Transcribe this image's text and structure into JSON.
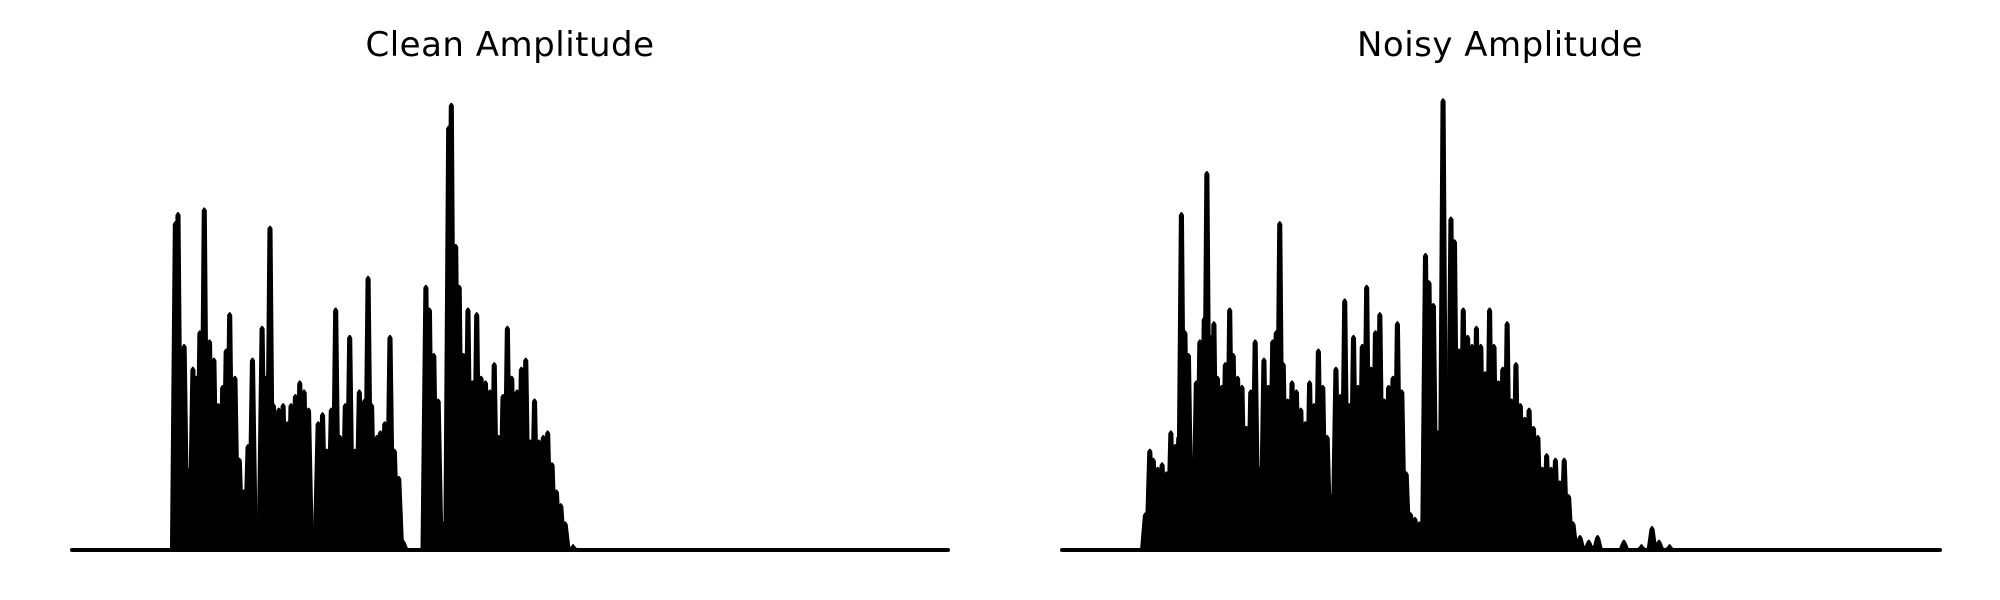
{
  "chart_data": [
    {
      "type": "area",
      "title": "Clean Amplitude",
      "xlabel": "",
      "ylabel": "",
      "grid": false,
      "axes_visible": false,
      "color": "#000000",
      "ylim": [
        0,
        1.0
      ],
      "xlim": [
        0,
        1000
      ],
      "peaks": [
        {
          "x": 118,
          "y": 0.72
        },
        {
          "x": 121,
          "y": 0.74
        },
        {
          "x": 128,
          "y": 0.45
        },
        {
          "x": 138,
          "y": 0.4
        },
        {
          "x": 142,
          "y": 0.38
        },
        {
          "x": 146,
          "y": 0.48
        },
        {
          "x": 151,
          "y": 0.75
        },
        {
          "x": 157,
          "y": 0.46
        },
        {
          "x": 162,
          "y": 0.42
        },
        {
          "x": 167,
          "y": 0.32
        },
        {
          "x": 172,
          "y": 0.36
        },
        {
          "x": 176,
          "y": 0.44
        },
        {
          "x": 180,
          "y": 0.52
        },
        {
          "x": 186,
          "y": 0.38
        },
        {
          "x": 191,
          "y": 0.2
        },
        {
          "x": 196,
          "y": 0.13
        },
        {
          "x": 201,
          "y": 0.23
        },
        {
          "x": 206,
          "y": 0.42
        },
        {
          "x": 212,
          "y": 0.05
        },
        {
          "x": 217,
          "y": 0.49
        },
        {
          "x": 221,
          "y": 0.38
        },
        {
          "x": 226,
          "y": 0.71
        },
        {
          "x": 230,
          "y": 0.32
        },
        {
          "x": 236,
          "y": 0.31
        },
        {
          "x": 241,
          "y": 0.32
        },
        {
          "x": 246,
          "y": 0.28
        },
        {
          "x": 250,
          "y": 0.32
        },
        {
          "x": 255,
          "y": 0.34
        },
        {
          "x": 260,
          "y": 0.37
        },
        {
          "x": 265,
          "y": 0.35
        },
        {
          "x": 270,
          "y": 0.31
        },
        {
          "x": 275,
          "y": 0.05
        },
        {
          "x": 281,
          "y": 0.28
        },
        {
          "x": 286,
          "y": 0.3
        },
        {
          "x": 291,
          "y": 0.22
        },
        {
          "x": 296,
          "y": 0.31
        },
        {
          "x": 301,
          "y": 0.53
        },
        {
          "x": 306,
          "y": 0.25
        },
        {
          "x": 312,
          "y": 0.32
        },
        {
          "x": 317,
          "y": 0.47
        },
        {
          "x": 323,
          "y": 0.22
        },
        {
          "x": 328,
          "y": 0.35
        },
        {
          "x": 334,
          "y": 0.33
        },
        {
          "x": 338,
          "y": 0.6
        },
        {
          "x": 342,
          "y": 0.32
        },
        {
          "x": 348,
          "y": 0.25
        },
        {
          "x": 352,
          "y": 0.26
        },
        {
          "x": 357,
          "y": 0.28
        },
        {
          "x": 363,
          "y": 0.47
        },
        {
          "x": 368,
          "y": 0.22
        },
        {
          "x": 373,
          "y": 0.16
        },
        {
          "x": 378,
          "y": 0.02
        },
        {
          "x": 404,
          "y": 0.58
        },
        {
          "x": 408,
          "y": 0.53
        },
        {
          "x": 413,
          "y": 0.43
        },
        {
          "x": 418,
          "y": 0.33
        },
        {
          "x": 423,
          "y": 0.06
        },
        {
          "x": 430,
          "y": 0.93
        },
        {
          "x": 433,
          "y": 0.98
        },
        {
          "x": 438,
          "y": 0.67
        },
        {
          "x": 442,
          "y": 0.58
        },
        {
          "x": 447,
          "y": 0.43
        },
        {
          "x": 452,
          "y": 0.53
        },
        {
          "x": 457,
          "y": 0.37
        },
        {
          "x": 462,
          "y": 0.52
        },
        {
          "x": 467,
          "y": 0.38
        },
        {
          "x": 472,
          "y": 0.37
        },
        {
          "x": 477,
          "y": 0.35
        },
        {
          "x": 482,
          "y": 0.41
        },
        {
          "x": 487,
          "y": 0.25
        },
        {
          "x": 492,
          "y": 0.34
        },
        {
          "x": 497,
          "y": 0.49
        },
        {
          "x": 502,
          "y": 0.38
        },
        {
          "x": 508,
          "y": 0.35
        },
        {
          "x": 513,
          "y": 0.4
        },
        {
          "x": 518,
          "y": 0.42
        },
        {
          "x": 523,
          "y": 0.24
        },
        {
          "x": 528,
          "y": 0.33
        },
        {
          "x": 533,
          "y": 0.24
        },
        {
          "x": 538,
          "y": 0.25
        },
        {
          "x": 543,
          "y": 0.26
        },
        {
          "x": 548,
          "y": 0.19
        },
        {
          "x": 553,
          "y": 0.13
        },
        {
          "x": 558,
          "y": 0.1
        },
        {
          "x": 563,
          "y": 0.06
        },
        {
          "x": 572,
          "y": 0.01
        }
      ]
    },
    {
      "type": "area",
      "title": "Noisy Amplitude",
      "xlabel": "",
      "ylabel": "",
      "grid": false,
      "axes_visible": false,
      "color": "#000000",
      "ylim": [
        0,
        1.0
      ],
      "xlim": [
        0,
        1000
      ],
      "peaks": [
        {
          "x": 95,
          "y": 0.08
        },
        {
          "x": 100,
          "y": 0.22
        },
        {
          "x": 104,
          "y": 0.2
        },
        {
          "x": 109,
          "y": 0.18
        },
        {
          "x": 114,
          "y": 0.19
        },
        {
          "x": 119,
          "y": 0.17
        },
        {
          "x": 124,
          "y": 0.26
        },
        {
          "x": 129,
          "y": 0.23
        },
        {
          "x": 133,
          "y": 0.25
        },
        {
          "x": 136,
          "y": 0.74
        },
        {
          "x": 140,
          "y": 0.48
        },
        {
          "x": 144,
          "y": 0.43
        },
        {
          "x": 148,
          "y": 0.19
        },
        {
          "x": 153,
          "y": 0.37
        },
        {
          "x": 157,
          "y": 0.46
        },
        {
          "x": 162,
          "y": 0.51
        },
        {
          "x": 165,
          "y": 0.83
        },
        {
          "x": 169,
          "y": 0.47
        },
        {
          "x": 173,
          "y": 0.5
        },
        {
          "x": 177,
          "y": 0.38
        },
        {
          "x": 182,
          "y": 0.36
        },
        {
          "x": 186,
          "y": 0.41
        },
        {
          "x": 191,
          "y": 0.53
        },
        {
          "x": 195,
          "y": 0.43
        },
        {
          "x": 200,
          "y": 0.38
        },
        {
          "x": 205,
          "y": 0.36
        },
        {
          "x": 210,
          "y": 0.27
        },
        {
          "x": 215,
          "y": 0.35
        },
        {
          "x": 220,
          "y": 0.46
        },
        {
          "x": 225,
          "y": 0.18
        },
        {
          "x": 230,
          "y": 0.42
        },
        {
          "x": 235,
          "y": 0.36
        },
        {
          "x": 240,
          "y": 0.46
        },
        {
          "x": 244,
          "y": 0.48
        },
        {
          "x": 248,
          "y": 0.72
        },
        {
          "x": 252,
          "y": 0.41
        },
        {
          "x": 257,
          "y": 0.33
        },
        {
          "x": 262,
          "y": 0.37
        },
        {
          "x": 267,
          "y": 0.35
        },
        {
          "x": 272,
          "y": 0.31
        },
        {
          "x": 277,
          "y": 0.28
        },
        {
          "x": 282,
          "y": 0.37
        },
        {
          "x": 287,
          "y": 0.32
        },
        {
          "x": 292,
          "y": 0.44
        },
        {
          "x": 297,
          "y": 0.36
        },
        {
          "x": 302,
          "y": 0.25
        },
        {
          "x": 307,
          "y": 0.12
        },
        {
          "x": 312,
          "y": 0.4
        },
        {
          "x": 317,
          "y": 0.34
        },
        {
          "x": 322,
          "y": 0.55
        },
        {
          "x": 327,
          "y": 0.32
        },
        {
          "x": 332,
          "y": 0.47
        },
        {
          "x": 337,
          "y": 0.36
        },
        {
          "x": 342,
          "y": 0.45
        },
        {
          "x": 347,
          "y": 0.58
        },
        {
          "x": 352,
          "y": 0.4
        },
        {
          "x": 357,
          "y": 0.48
        },
        {
          "x": 362,
          "y": 0.52
        },
        {
          "x": 367,
          "y": 0.33
        },
        {
          "x": 372,
          "y": 0.36
        },
        {
          "x": 377,
          "y": 0.38
        },
        {
          "x": 382,
          "y": 0.5
        },
        {
          "x": 387,
          "y": 0.35
        },
        {
          "x": 392,
          "y": 0.17
        },
        {
          "x": 397,
          "y": 0.08
        },
        {
          "x": 402,
          "y": 0.07
        },
        {
          "x": 407,
          "y": 0.06
        },
        {
          "x": 414,
          "y": 0.65
        },
        {
          "x": 418,
          "y": 0.59
        },
        {
          "x": 423,
          "y": 0.54
        },
        {
          "x": 428,
          "y": 0.26
        },
        {
          "x": 434,
          "y": 0.99
        },
        {
          "x": 439,
          "y": 0.31
        },
        {
          "x": 443,
          "y": 0.73
        },
        {
          "x": 447,
          "y": 0.68
        },
        {
          "x": 452,
          "y": 0.44
        },
        {
          "x": 457,
          "y": 0.53
        },
        {
          "x": 462,
          "y": 0.47
        },
        {
          "x": 467,
          "y": 0.45
        },
        {
          "x": 472,
          "y": 0.49
        },
        {
          "x": 477,
          "y": 0.45
        },
        {
          "x": 482,
          "y": 0.39
        },
        {
          "x": 487,
          "y": 0.53
        },
        {
          "x": 492,
          "y": 0.45
        },
        {
          "x": 497,
          "y": 0.37
        },
        {
          "x": 502,
          "y": 0.4
        },
        {
          "x": 507,
          "y": 0.5
        },
        {
          "x": 512,
          "y": 0.33
        },
        {
          "x": 517,
          "y": 0.41
        },
        {
          "x": 522,
          "y": 0.32
        },
        {
          "x": 527,
          "y": 0.29
        },
        {
          "x": 532,
          "y": 0.31
        },
        {
          "x": 537,
          "y": 0.27
        },
        {
          "x": 542,
          "y": 0.25
        },
        {
          "x": 547,
          "y": 0.18
        },
        {
          "x": 552,
          "y": 0.21
        },
        {
          "x": 557,
          "y": 0.18
        },
        {
          "x": 562,
          "y": 0.2
        },
        {
          "x": 567,
          "y": 0.15
        },
        {
          "x": 572,
          "y": 0.2
        },
        {
          "x": 577,
          "y": 0.12
        },
        {
          "x": 582,
          "y": 0.06
        },
        {
          "x": 590,
          "y": 0.03
        },
        {
          "x": 600,
          "y": 0.02
        },
        {
          "x": 610,
          "y": 0.03
        },
        {
          "x": 640,
          "y": 0.02
        },
        {
          "x": 660,
          "y": 0.01
        },
        {
          "x": 672,
          "y": 0.05
        },
        {
          "x": 680,
          "y": 0.02
        },
        {
          "x": 692,
          "y": 0.01
        }
      ]
    }
  ]
}
